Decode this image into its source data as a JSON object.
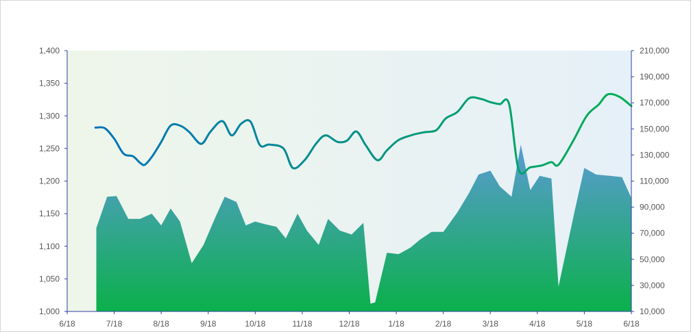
{
  "chart_data": {
    "type": "area+line",
    "title": "",
    "x": {
      "ticks": [
        "6/18",
        "7/18",
        "8/18",
        "9/18",
        "10/18",
        "11/18",
        "12/18",
        "1/18",
        "2/18",
        "3/18",
        "4/18",
        "5/18",
        "6/18"
      ],
      "domain": [
        0,
        12
      ]
    },
    "left_axis": {
      "min": 1000,
      "max": 1400,
      "ticks": [
        "1,000",
        "1,050",
        "1,100",
        "1,150",
        "1,200",
        "1,250",
        "1,300",
        "1,350",
        "1,400"
      ]
    },
    "right_axis": {
      "min": 10000,
      "max": 210000,
      "ticks": [
        "10,000",
        "30,000",
        "50,000",
        "70,000",
        "90,000",
        "110,000",
        "130,000",
        "150,000",
        "170,000",
        "190,000",
        "210,000"
      ]
    },
    "area_series": {
      "axis": "right",
      "colors": {
        "top": "#5b9bd5",
        "bottom": "#0bb04b"
      },
      "points": [
        [
          0.62,
          74000
        ],
        [
          0.85,
          98000
        ],
        [
          1.05,
          98500
        ],
        [
          1.3,
          81000
        ],
        [
          1.55,
          81000
        ],
        [
          1.8,
          85000
        ],
        [
          2.0,
          76000
        ],
        [
          2.2,
          89000
        ],
        [
          2.4,
          79000
        ],
        [
          2.65,
          47000
        ],
        [
          2.9,
          61000
        ],
        [
          3.15,
          82000
        ],
        [
          3.35,
          98000
        ],
        [
          3.6,
          94000
        ],
        [
          3.8,
          76000
        ],
        [
          4.0,
          79000
        ],
        [
          4.2,
          77000
        ],
        [
          4.45,
          75000
        ],
        [
          4.65,
          66000
        ],
        [
          4.9,
          85000
        ],
        [
          5.1,
          72000
        ],
        [
          5.35,
          61000
        ],
        [
          5.55,
          81000
        ],
        [
          5.8,
          72000
        ],
        [
          6.05,
          69000
        ],
        [
          6.3,
          78000
        ],
        [
          6.45,
          16000
        ],
        [
          6.55,
          17000
        ],
        [
          6.8,
          55000
        ],
        [
          7.05,
          54000
        ],
        [
          7.3,
          59000
        ],
        [
          7.5,
          65000
        ],
        [
          7.75,
          71000
        ],
        [
          8.0,
          71000
        ],
        [
          8.3,
          86000
        ],
        [
          8.55,
          101000
        ],
        [
          8.75,
          115000
        ],
        [
          9.0,
          118000
        ],
        [
          9.2,
          106000
        ],
        [
          9.45,
          98000
        ],
        [
          9.65,
          138000
        ],
        [
          9.85,
          103000
        ],
        [
          10.05,
          114000
        ],
        [
          10.3,
          112000
        ],
        [
          10.45,
          29000
        ],
        [
          10.8,
          88000
        ],
        [
          11.0,
          120000
        ],
        [
          11.25,
          115000
        ],
        [
          11.55,
          114000
        ],
        [
          11.8,
          113000
        ],
        [
          12.0,
          97000
        ]
      ]
    },
    "line_series": {
      "axis": "left",
      "colors": {
        "left": "#0070c0",
        "right": "#00b050"
      },
      "points": [
        [
          0.6,
          1282
        ],
        [
          0.8,
          1281
        ],
        [
          1.0,
          1265
        ],
        [
          1.2,
          1242
        ],
        [
          1.4,
          1238
        ],
        [
          1.55,
          1228
        ],
        [
          1.65,
          1225
        ],
        [
          1.8,
          1237
        ],
        [
          2.0,
          1260
        ],
        [
          2.2,
          1285
        ],
        [
          2.4,
          1285
        ],
        [
          2.6,
          1275
        ],
        [
          2.85,
          1257
        ],
        [
          3.05,
          1276
        ],
        [
          3.3,
          1292
        ],
        [
          3.5,
          1270
        ],
        [
          3.7,
          1288
        ],
        [
          3.9,
          1291
        ],
        [
          4.1,
          1255
        ],
        [
          4.3,
          1256
        ],
        [
          4.6,
          1250
        ],
        [
          4.8,
          1220
        ],
        [
          5.05,
          1232
        ],
        [
          5.3,
          1258
        ],
        [
          5.5,
          1270
        ],
        [
          5.75,
          1260
        ],
        [
          5.95,
          1262
        ],
        [
          6.15,
          1276
        ],
        [
          6.35,
          1255
        ],
        [
          6.6,
          1232
        ],
        [
          6.8,
          1247
        ],
        [
          7.05,
          1263
        ],
        [
          7.35,
          1271
        ],
        [
          7.6,
          1275
        ],
        [
          7.85,
          1278
        ],
        [
          8.05,
          1296
        ],
        [
          8.3,
          1306
        ],
        [
          8.55,
          1327
        ],
        [
          8.8,
          1326
        ],
        [
          9.0,
          1321
        ],
        [
          9.2,
          1318
        ],
        [
          9.4,
          1318
        ],
        [
          9.6,
          1218
        ],
        [
          9.85,
          1221
        ],
        [
          10.1,
          1224
        ],
        [
          10.3,
          1229
        ],
        [
          10.45,
          1225
        ],
        [
          10.75,
          1260
        ],
        [
          11.05,
          1300
        ],
        [
          11.3,
          1317
        ],
        [
          11.5,
          1333
        ],
        [
          11.75,
          1329
        ],
        [
          12.0,
          1315
        ]
      ]
    },
    "plot_background": {
      "left": "#eef6ea",
      "right": "#e6f0f8"
    },
    "axis_color": "#2e3f9e",
    "legend": "none",
    "grid": false
  }
}
